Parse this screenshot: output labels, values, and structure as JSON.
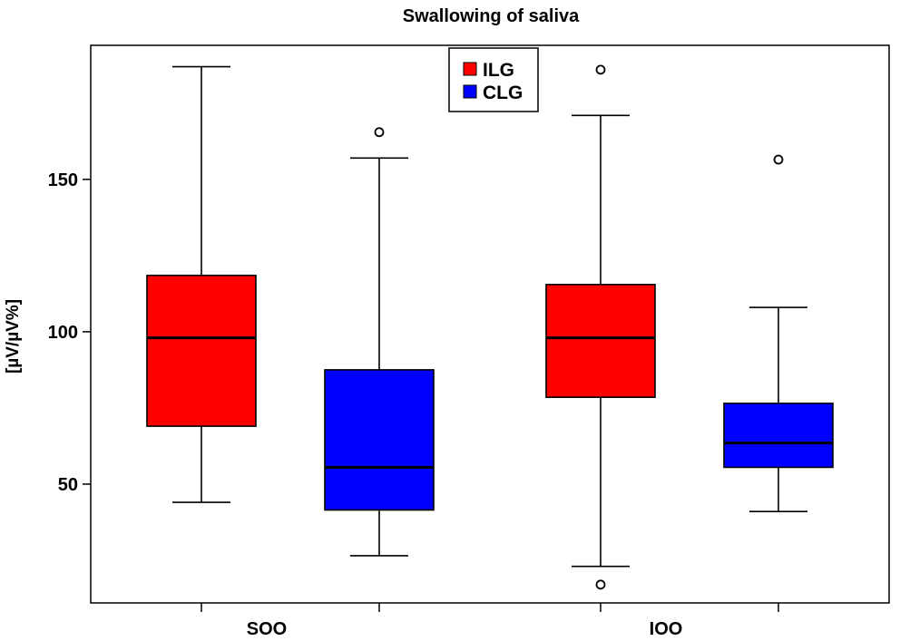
{
  "chart_data": {
    "type": "boxplot",
    "title": "Swallowing of saliva",
    "xlabel": "",
    "ylabel": "[µV/µV%]",
    "ylim": [
      11,
      194
    ],
    "yticks": [
      50,
      100,
      150
    ],
    "yticklabels": [
      "50",
      "100",
      "150"
    ],
    "categories": [
      "SOO",
      "IOO"
    ],
    "legend": {
      "position": "top-center",
      "entries": [
        "ILG",
        "CLG"
      ]
    },
    "series": [
      {
        "name": "ILG",
        "color": "#ff0000",
        "boxes": [
          {
            "category": "SOO",
            "whisker_low": 44,
            "q1": 69,
            "median": 98,
            "q3": 118.5,
            "whisker_high": 187,
            "outliers": []
          },
          {
            "category": "IOO",
            "whisker_low": 23,
            "q1": 78.5,
            "median": 98,
            "q3": 115.5,
            "whisker_high": 171,
            "outliers": [
              186,
              17
            ]
          }
        ]
      },
      {
        "name": "CLG",
        "color": "#0000ff",
        "boxes": [
          {
            "category": "SOO",
            "whisker_low": 26.5,
            "q1": 41.5,
            "median": 55.5,
            "q3": 87.5,
            "whisker_high": 157,
            "outliers": [
              165.5
            ]
          },
          {
            "category": "IOO",
            "whisker_low": 41,
            "q1": 55.5,
            "median": 63.5,
            "q3": 76.5,
            "whisker_high": 108,
            "outliers": [
              156.5
            ]
          }
        ]
      }
    ]
  }
}
